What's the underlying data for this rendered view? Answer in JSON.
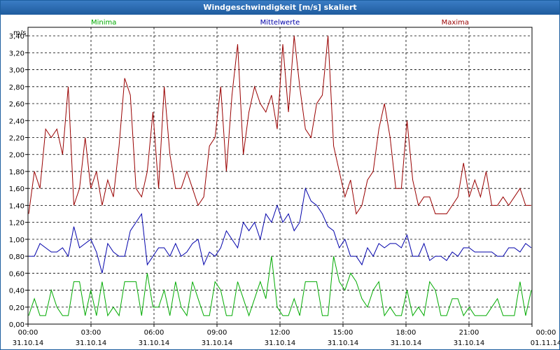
{
  "window": {
    "title": "Windgeschwindigkeit [m/s] skaliert"
  },
  "chart_data": {
    "type": "line",
    "ylabel": "m/s",
    "ylim": [
      0,
      3.5
    ],
    "yticks": [
      "0,00",
      "0,20",
      "0,40",
      "0,60",
      "0,80",
      "1,00",
      "1,20",
      "1,40",
      "1,60",
      "1,80",
      "2,00",
      "2,20",
      "2,40",
      "2,60",
      "2,80",
      "3,00",
      "3,20",
      "3,40"
    ],
    "xticks": [
      {
        "time": "00:00",
        "date": "31.10.14"
      },
      {
        "time": "03:00",
        "date": "31.10.14"
      },
      {
        "time": "06:00",
        "date": "31.10.14"
      },
      {
        "time": "09:00",
        "date": "31.10.14"
      },
      {
        "time": "12:00",
        "date": "31.10.14"
      },
      {
        "time": "15:00",
        "date": "31.10.14"
      },
      {
        "time": "18:00",
        "date": "31.10.14"
      },
      {
        "time": "21:00",
        "date": "31.10.14"
      },
      {
        "time": "00:00",
        "date": "01.11.14"
      }
    ],
    "grid": true,
    "legend_position": "top",
    "series": [
      {
        "name": "Minima",
        "color": "#00aa00",
        "values": [
          0.1,
          0.3,
          0.1,
          0.1,
          0.4,
          0.2,
          0.1,
          0.1,
          0.5,
          0.5,
          0.1,
          0.4,
          0.1,
          0.5,
          0.1,
          0.2,
          0.1,
          0.5,
          0.5,
          0.5,
          0.1,
          0.6,
          0.2,
          0.2,
          0.4,
          0.1,
          0.5,
          0.2,
          0.1,
          0.5,
          0.3,
          0.1,
          0.1,
          0.5,
          0.4,
          0.1,
          0.1,
          0.5,
          0.3,
          0.1,
          0.3,
          0.5,
          0.3,
          0.8,
          0.2,
          0.1,
          0.1,
          0.3,
          0.1,
          0.5,
          0.5,
          0.5,
          0.1,
          0.1,
          0.8,
          0.5,
          0.4,
          0.6,
          0.5,
          0.3,
          0.2,
          0.4,
          0.5,
          0.1,
          0.2,
          0.1,
          0.1,
          0.4,
          0.1,
          0.2,
          0.1,
          0.5,
          0.4,
          0.1,
          0.1,
          0.3,
          0.3,
          0.1,
          0.2,
          0.1,
          0.1,
          0.1,
          0.2,
          0.3,
          0.1,
          0.1,
          0.1,
          0.5,
          0.1,
          0.4
        ]
      },
      {
        "name": "Mittelwerte",
        "color": "#0000aa",
        "values": [
          0.8,
          0.8,
          0.95,
          0.9,
          0.85,
          0.85,
          0.9,
          0.8,
          1.15,
          0.9,
          0.95,
          1.0,
          0.85,
          0.6,
          0.95,
          0.85,
          0.8,
          0.8,
          1.1,
          1.2,
          1.3,
          0.7,
          0.8,
          0.9,
          0.9,
          0.8,
          0.95,
          0.8,
          0.85,
          0.95,
          1.0,
          0.7,
          0.85,
          0.8,
          0.9,
          1.1,
          1.0,
          0.9,
          1.2,
          1.1,
          1.2,
          1.0,
          1.3,
          1.2,
          1.4,
          1.2,
          1.3,
          1.1,
          1.2,
          1.6,
          1.45,
          1.4,
          1.3,
          1.15,
          1.1,
          0.9,
          1.0,
          0.8,
          0.8,
          0.7,
          0.9,
          0.8,
          0.95,
          0.9,
          0.95,
          0.95,
          0.9,
          1.05,
          0.8,
          0.8,
          0.95,
          0.75,
          0.8,
          0.8,
          0.75,
          0.85,
          0.8,
          0.9,
          0.9,
          0.85,
          0.85,
          0.85,
          0.85,
          0.8,
          0.8,
          0.9,
          0.9,
          0.85,
          0.95,
          0.9
        ]
      },
      {
        "name": "Maxima",
        "color": "#990000",
        "values": [
          1.3,
          1.8,
          1.6,
          2.3,
          2.2,
          2.3,
          2.0,
          2.8,
          1.4,
          1.6,
          2.2,
          1.6,
          1.8,
          1.4,
          1.7,
          1.5,
          2.1,
          2.9,
          2.7,
          1.6,
          1.5,
          1.8,
          2.5,
          1.6,
          2.8,
          2.0,
          1.6,
          1.6,
          1.8,
          1.6,
          1.4,
          1.5,
          2.1,
          2.2,
          2.8,
          1.8,
          2.7,
          3.3,
          2.0,
          2.5,
          2.8,
          2.6,
          2.5,
          2.7,
          2.3,
          3.3,
          2.5,
          3.4,
          2.8,
          2.3,
          2.2,
          2.6,
          2.7,
          3.4,
          2.1,
          1.8,
          1.5,
          1.7,
          1.3,
          1.4,
          1.7,
          1.8,
          2.3,
          2.6,
          2.2,
          1.6,
          1.6,
          2.4,
          1.7,
          1.4,
          1.5,
          1.5,
          1.3,
          1.3,
          1.3,
          1.4,
          1.5,
          1.9,
          1.5,
          1.7,
          1.5,
          1.8,
          1.4,
          1.4,
          1.5,
          1.4,
          1.5,
          1.6,
          1.4,
          1.4
        ]
      }
    ]
  }
}
